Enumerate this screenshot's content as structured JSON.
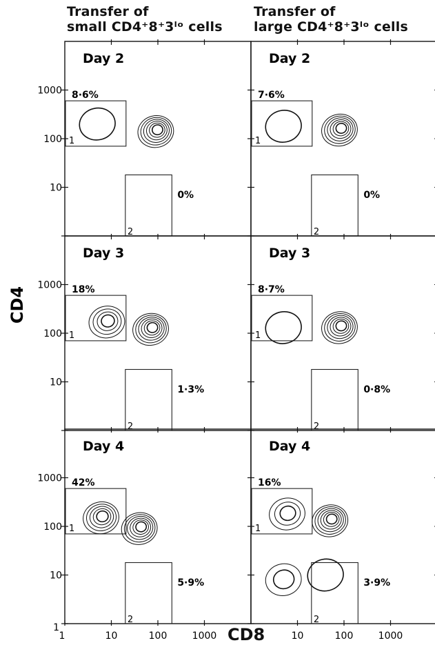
{
  "column_headers": [
    {
      "line1": "Transfer of",
      "line2": "small CD4⁺8⁺3ˡᵒ cells"
    },
    {
      "line1": "Transfer of",
      "line2": "large CD4⁺8⁺3ˡᵒ cells"
    }
  ],
  "chart_data": {
    "type": "contour",
    "xlabel": "CD8",
    "ylabel": "CD4",
    "x_scale": "log",
    "y_scale": "log",
    "xlim": [
      1,
      10000
    ],
    "ylim": [
      1,
      10000
    ],
    "x_ticks": [
      "1",
      "10",
      "100",
      "1000"
    ],
    "y_ticks": [
      "1",
      "10",
      "100",
      "1000"
    ],
    "gates": [
      {
        "id": "1",
        "x": [
          1,
          20
        ],
        "y": [
          70,
          600
        ]
      },
      {
        "id": "2",
        "x": [
          20,
          200
        ],
        "y": [
          1,
          18
        ]
      }
    ],
    "panels": [
      {
        "column": "small",
        "day": "Day 2",
        "gate1_percent": "8·6%",
        "gate2_percent": "0%",
        "populations": [
          {
            "x": 5,
            "y": 200,
            "rings": 1
          },
          {
            "x": 90,
            "y": 140,
            "rings": 6
          }
        ]
      },
      {
        "column": "large",
        "day": "Day 2",
        "gate1_percent": "7·6%",
        "gate2_percent": "0%",
        "populations": [
          {
            "x": 5,
            "y": 180,
            "rings": 1
          },
          {
            "x": 80,
            "y": 150,
            "rings": 6
          }
        ]
      },
      {
        "column": "small",
        "day": "Day 3",
        "gate1_percent": "18%",
        "gate2_percent": "1·3%",
        "populations": [
          {
            "x": 8,
            "y": 170,
            "rings": 4
          },
          {
            "x": 70,
            "y": 120,
            "rings": 6
          }
        ]
      },
      {
        "column": "large",
        "day": "Day 3",
        "gate1_percent": "8·7%",
        "gate2_percent": "0·8%",
        "populations": [
          {
            "x": 5,
            "y": 130,
            "rings": 1
          },
          {
            "x": 80,
            "y": 130,
            "rings": 6
          }
        ]
      },
      {
        "column": "small",
        "day": "Day 4",
        "gate1_percent": "42%",
        "gate2_percent": "5·9%",
        "populations": [
          {
            "x": 6,
            "y": 150,
            "rings": 5
          },
          {
            "x": 40,
            "y": 90,
            "rings": 6
          }
        ]
      },
      {
        "column": "large",
        "day": "Day 4",
        "gate1_percent": "16%",
        "gate2_percent": "3·9%",
        "populations": [
          {
            "x": 6,
            "y": 180,
            "rings": 3
          },
          {
            "x": 50,
            "y": 130,
            "rings": 6
          },
          {
            "x": 5,
            "y": 8,
            "rings": 2
          },
          {
            "x": 40,
            "y": 10,
            "rings": 1
          }
        ]
      }
    ]
  }
}
